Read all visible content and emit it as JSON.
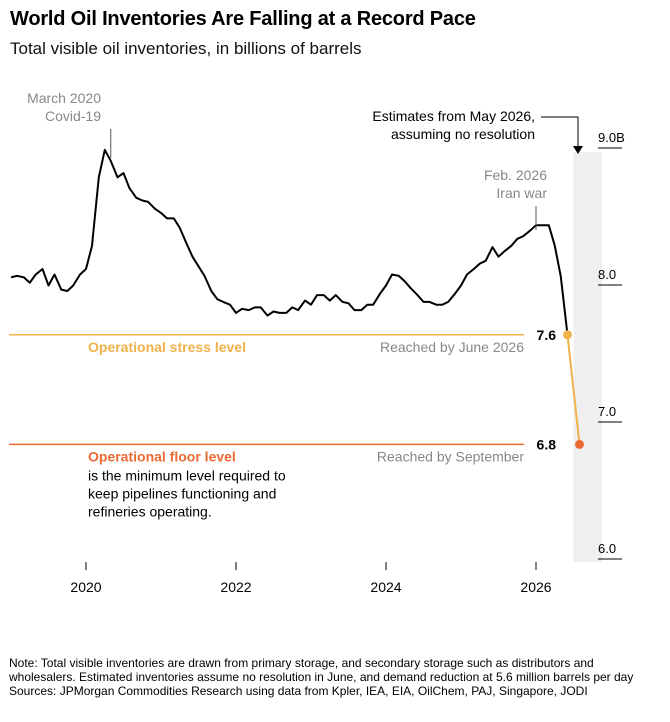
{
  "header": {
    "title": "World Oil Inventories Are Falling at a Record Pace",
    "subtitle": "Total visible oil inventories, in billions of barrels"
  },
  "footer": {
    "note": "Note: Total visible inventories are drawn from primary storage, and secondary storage such as distributors and wholesalers. Estimated inventories assume no resolution in June, and demand reduction at 5.6 million barrels per day",
    "sources": "Sources: JPMorgan Commodities Research using data from Kpler, IEA, EIA, OilChem, PAJ, Singapore, JODI"
  },
  "colors": {
    "line": "#000000",
    "estimate": "#f0b24a",
    "stress": "#f0b24a",
    "floor": "#ec6b34",
    "band": "#efefef",
    "muted": "#888888"
  },
  "chart_data": {
    "type": "line",
    "title": "World Oil Inventories Are Falling at a Record Pace",
    "subtitle": "Total visible oil inventories, in billions of barrels",
    "xlabel": "",
    "ylabel": "",
    "xlim": [
      2019.0,
      2027.0
    ],
    "ylim": [
      6.0,
      9.0
    ],
    "x_ticks": [
      2020,
      2022,
      2024,
      2026
    ],
    "x_tick_labels": [
      "2020",
      "2022",
      "2024",
      "2026"
    ],
    "y_ticks": [
      6.0,
      7.0,
      8.0,
      9.0
    ],
    "y_tick_labels": [
      "6.0",
      "7.0",
      "8.0",
      "9.0B"
    ],
    "grid": false,
    "series": [
      {
        "name": "",
        "style": "solid",
        "x": [
          2019.0,
          2019.08,
          2019.17,
          2019.25,
          2019.33,
          2019.42,
          2019.5,
          2019.58,
          2019.67,
          2019.75,
          2019.83,
          2019.92,
          2020.0,
          2020.08,
          2020.17,
          2020.25,
          2020.33,
          2020.42,
          2020.5,
          2020.58,
          2020.67,
          2020.75,
          2020.83,
          2020.92,
          2021.0,
          2021.08,
          2021.17,
          2021.25,
          2021.33,
          2021.42,
          2021.5,
          2021.58,
          2021.67,
          2021.75,
          2021.83,
          2021.92,
          2022.0,
          2022.08,
          2022.17,
          2022.25,
          2022.33,
          2022.42,
          2022.5,
          2022.58,
          2022.67,
          2022.75,
          2022.83,
          2022.92,
          2023.0,
          2023.08,
          2023.17,
          2023.25,
          2023.33,
          2023.42,
          2023.5,
          2023.58,
          2023.67,
          2023.75,
          2023.83,
          2023.92,
          2024.0,
          2024.08,
          2024.17,
          2024.25,
          2024.33,
          2024.42,
          2024.5,
          2024.58,
          2024.67,
          2024.75,
          2024.83,
          2024.92,
          2025.0,
          2025.08,
          2025.17,
          2025.25,
          2025.33,
          2025.42,
          2025.5,
          2025.58,
          2025.67,
          2025.75,
          2025.83,
          2025.92,
          2026.0,
          2026.08,
          2026.17,
          2026.25,
          2026.33,
          2026.42
        ],
        "values": [
          8.02,
          8.03,
          8.02,
          7.98,
          8.04,
          8.08,
          7.96,
          8.04,
          7.93,
          7.92,
          7.96,
          8.04,
          8.08,
          8.25,
          8.75,
          8.95,
          8.87,
          8.75,
          8.78,
          8.67,
          8.6,
          8.58,
          8.57,
          8.52,
          8.49,
          8.45,
          8.45,
          8.38,
          8.28,
          8.17,
          8.1,
          8.03,
          7.92,
          7.86,
          7.84,
          7.82,
          7.76,
          7.79,
          7.78,
          7.8,
          7.8,
          7.74,
          7.77,
          7.76,
          7.76,
          7.8,
          7.78,
          7.85,
          7.82,
          7.89,
          7.89,
          7.85,
          7.89,
          7.84,
          7.83,
          7.78,
          7.78,
          7.82,
          7.82,
          7.9,
          7.96,
          8.04,
          8.03,
          7.99,
          7.94,
          7.89,
          7.84,
          7.84,
          7.82,
          7.82,
          7.84,
          7.9,
          7.96,
          8.04,
          8.08,
          8.12,
          8.14,
          8.24,
          8.17,
          8.21,
          8.25,
          8.3,
          8.32,
          8.36,
          8.4,
          8.4,
          8.4,
          8.25,
          8.03,
          7.6
        ]
      },
      {
        "name": "Estimates from May 2026, assuming no resolution",
        "style": "estimate",
        "x": [
          2026.42,
          2026.58
        ],
        "values": [
          7.6,
          6.8
        ]
      }
    ],
    "annotations": [
      {
        "type": "reference_line",
        "y": 7.6,
        "label": "Operational stress level",
        "right_label": "Reached by June 2026",
        "value_label": "7.6"
      },
      {
        "type": "reference_line",
        "y": 6.8,
        "label": "Operational floor level",
        "label_note": "is the minimum level required to keep pipelines functioning and refineries operating.",
        "right_label": "Reached by September",
        "value_label": "6.8"
      },
      {
        "type": "event",
        "x": 2020.33,
        "lines": [
          "March 2020",
          "Covid-19"
        ]
      },
      {
        "type": "event",
        "x": 2026.0,
        "lines": [
          "Feb. 2026",
          "Iran war"
        ]
      },
      {
        "type": "estimate_band",
        "x_start": 2026.5,
        "x_end": 2027.0,
        "lines": [
          "Estimates from May 2026,",
          "assuming no resolution"
        ]
      }
    ]
  }
}
